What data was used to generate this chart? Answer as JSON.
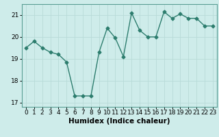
{
  "x": [
    0,
    1,
    2,
    3,
    4,
    5,
    6,
    7,
    8,
    9,
    10,
    11,
    12,
    13,
    14,
    15,
    16,
    17,
    18,
    19,
    20,
    21,
    22,
    23
  ],
  "y": [
    19.5,
    19.8,
    19.5,
    19.3,
    19.2,
    18.85,
    17.3,
    17.3,
    17.3,
    19.3,
    20.4,
    19.95,
    19.1,
    21.1,
    20.3,
    20.0,
    20.0,
    21.15,
    20.85,
    21.05,
    20.85,
    20.85,
    20.5,
    20.5
  ],
  "xlabel": "Humidex (Indice chaleur)",
  "xlim": [
    -0.5,
    23.5
  ],
  "ylim": [
    16.8,
    21.5
  ],
  "yticks": [
    17,
    18,
    19,
    20,
    21
  ],
  "xticks": [
    0,
    1,
    2,
    3,
    4,
    5,
    6,
    7,
    8,
    9,
    10,
    11,
    12,
    13,
    14,
    15,
    16,
    17,
    18,
    19,
    20,
    21,
    22,
    23
  ],
  "line_color": "#2d7d6e",
  "marker": "D",
  "marker_size": 2.5,
  "bg_color": "#ceecea",
  "grid_color": "#b8dbd8",
  "tick_label_size": 6.5,
  "xlabel_size": 7.5,
  "line_width": 1.0
}
